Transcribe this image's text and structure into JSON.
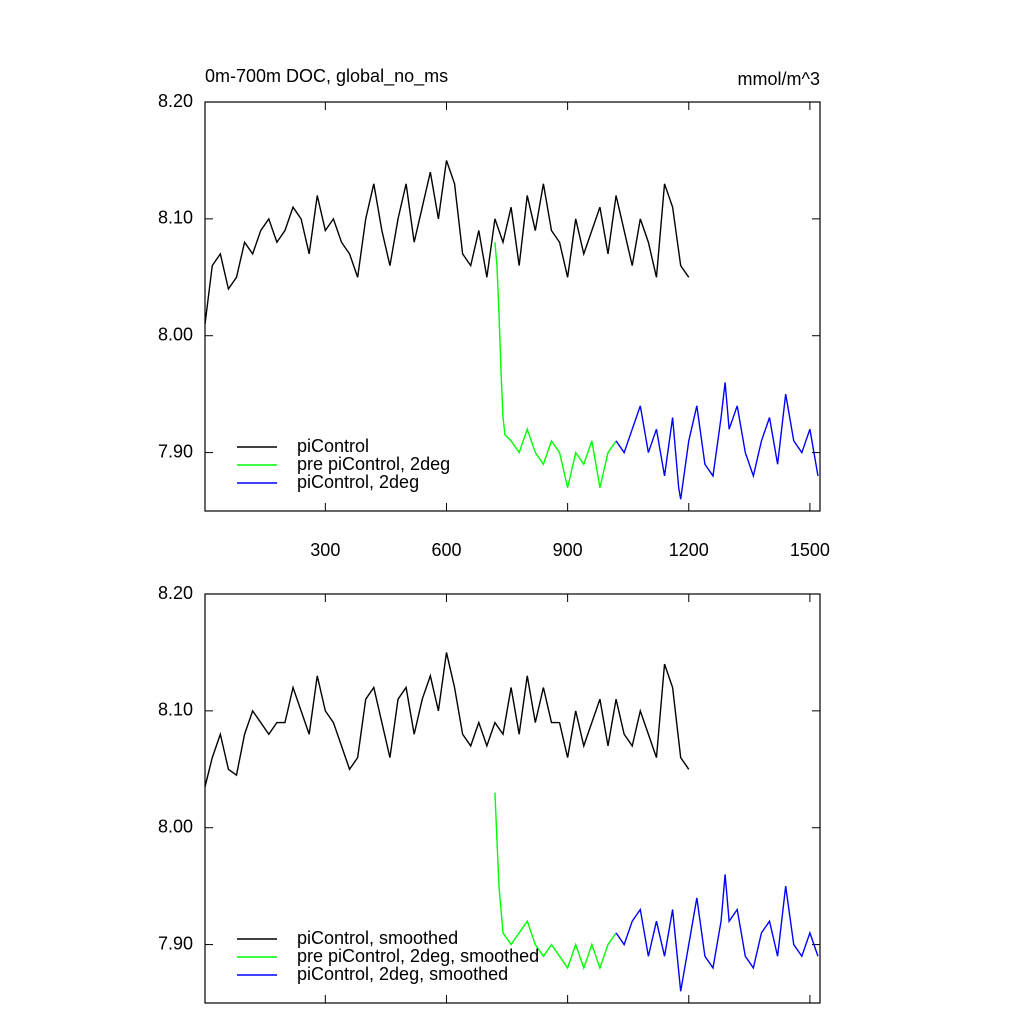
{
  "chart_data": [
    {
      "type": "line",
      "title": "0m-700m DOC, global_no_ms",
      "subtitle": "mmol/m^3",
      "xlim": [
        2,
        1525
      ],
      "ylim": [
        7.85,
        8.2
      ],
      "xticks": [
        300,
        600,
        900,
        1200,
        1500
      ],
      "show_xtick_labels": true,
      "yticks": [
        {
          "value": 7.9,
          "label": "7.90"
        },
        {
          "value": 8.0,
          "label": "8.00"
        },
        {
          "value": 8.1,
          "label": "8.10"
        },
        {
          "value": 8.2,
          "label": "8.20"
        }
      ],
      "legend": "lower left",
      "series": [
        {
          "name": "piControl",
          "color": "#000000",
          "x": [
            2,
            20,
            40,
            60,
            80,
            100,
            120,
            140,
            160,
            180,
            200,
            220,
            240,
            260,
            280,
            300,
            320,
            340,
            360,
            380,
            400,
            420,
            440,
            460,
            480,
            500,
            520,
            540,
            560,
            580,
            600,
            620,
            640,
            660,
            680,
            700,
            720,
            740,
            760,
            780,
            800,
            820,
            840,
            860,
            880,
            900,
            920,
            940,
            960,
            980,
            1000,
            1020,
            1040,
            1060,
            1080,
            1100,
            1120,
            1140,
            1160,
            1180,
            1200
          ],
          "values": [
            8.01,
            8.06,
            8.07,
            8.04,
            8.05,
            8.08,
            8.07,
            8.09,
            8.1,
            8.08,
            8.09,
            8.11,
            8.1,
            8.07,
            8.12,
            8.09,
            8.1,
            8.08,
            8.07,
            8.05,
            8.1,
            8.13,
            8.09,
            8.06,
            8.1,
            8.13,
            8.08,
            8.11,
            8.14,
            8.1,
            8.15,
            8.13,
            8.07,
            8.06,
            8.09,
            8.05,
            8.1,
            8.08,
            8.11,
            8.06,
            8.12,
            8.09,
            8.13,
            8.09,
            8.08,
            8.05,
            8.1,
            8.07,
            8.09,
            8.11,
            8.07,
            8.12,
            8.09,
            8.06,
            8.1,
            8.08,
            8.05,
            8.13,
            8.11,
            8.06,
            8.05
          ]
        },
        {
          "name": "pre piControl, 2deg",
          "color": "#00ff00",
          "x": [
            720,
            725,
            730,
            735,
            740,
            745,
            760,
            780,
            800,
            820,
            840,
            860,
            880,
            900,
            920,
            940,
            960,
            980,
            1000,
            1020
          ],
          "values": [
            8.08,
            8.06,
            8.02,
            7.97,
            7.93,
            7.915,
            7.91,
            7.9,
            7.92,
            7.9,
            7.89,
            7.91,
            7.9,
            7.87,
            7.9,
            7.89,
            7.91,
            7.87,
            7.9,
            7.91
          ]
        },
        {
          "name": "piControl, 2deg",
          "color": "#0000ff",
          "x": [
            1020,
            1040,
            1060,
            1080,
            1100,
            1120,
            1140,
            1160,
            1175,
            1180,
            1200,
            1220,
            1240,
            1260,
            1280,
            1290,
            1300,
            1320,
            1340,
            1360,
            1380,
            1400,
            1420,
            1440,
            1460,
            1480,
            1500,
            1520
          ],
          "values": [
            7.91,
            7.9,
            7.92,
            7.94,
            7.9,
            7.92,
            7.88,
            7.93,
            7.87,
            7.86,
            7.91,
            7.94,
            7.89,
            7.88,
            7.93,
            7.96,
            7.92,
            7.94,
            7.9,
            7.88,
            7.91,
            7.93,
            7.89,
            7.95,
            7.91,
            7.9,
            7.92,
            7.88
          ]
        }
      ]
    },
    {
      "type": "line",
      "xlim": [
        2,
        1525
      ],
      "ylim": [
        7.85,
        8.2
      ],
      "xticks": [
        300,
        600,
        900,
        1200,
        1500
      ],
      "show_xtick_labels": false,
      "yticks": [
        {
          "value": 7.9,
          "label": "7.90"
        },
        {
          "value": 8.0,
          "label": "8.00"
        },
        {
          "value": 8.1,
          "label": "8.10"
        },
        {
          "value": 8.2,
          "label": "8.20"
        }
      ],
      "legend": "lower left",
      "series": [
        {
          "name": "piControl, smoothed",
          "color": "#000000",
          "x": [
            2,
            20,
            40,
            60,
            80,
            100,
            120,
            140,
            160,
            180,
            200,
            220,
            240,
            260,
            280,
            300,
            320,
            340,
            360,
            380,
            400,
            420,
            440,
            460,
            480,
            500,
            520,
            540,
            560,
            580,
            600,
            620,
            640,
            660,
            680,
            700,
            720,
            740,
            760,
            780,
            800,
            820,
            840,
            860,
            880,
            900,
            920,
            940,
            960,
            980,
            1000,
            1020,
            1040,
            1060,
            1080,
            1100,
            1120,
            1140,
            1160,
            1180,
            1200
          ],
          "values": [
            8.035,
            8.06,
            8.08,
            8.05,
            8.045,
            8.08,
            8.1,
            8.09,
            8.08,
            8.09,
            8.09,
            8.12,
            8.1,
            8.08,
            8.13,
            8.1,
            8.09,
            8.07,
            8.05,
            8.06,
            8.11,
            8.12,
            8.09,
            8.06,
            8.11,
            8.12,
            8.08,
            8.11,
            8.13,
            8.1,
            8.15,
            8.12,
            8.08,
            8.07,
            8.09,
            8.07,
            8.09,
            8.08,
            8.12,
            8.08,
            8.13,
            8.09,
            8.12,
            8.09,
            8.09,
            8.06,
            8.1,
            8.07,
            8.09,
            8.11,
            8.07,
            8.11,
            8.08,
            8.07,
            8.1,
            8.08,
            8.06,
            8.14,
            8.12,
            8.06,
            8.05
          ]
        },
        {
          "name": "pre piControl, 2deg, smoothed",
          "color": "#00ff00",
          "x": [
            720,
            730,
            740,
            760,
            780,
            800,
            820,
            840,
            860,
            880,
            900,
            920,
            940,
            960,
            980,
            1000,
            1020
          ],
          "values": [
            8.03,
            7.95,
            7.91,
            7.9,
            7.91,
            7.92,
            7.9,
            7.89,
            7.9,
            7.89,
            7.88,
            7.9,
            7.88,
            7.9,
            7.88,
            7.9,
            7.91
          ]
        },
        {
          "name": "piControl, 2deg, smoothed",
          "color": "#0000ff",
          "x": [
            1020,
            1040,
            1060,
            1080,
            1100,
            1120,
            1140,
            1160,
            1180,
            1200,
            1220,
            1240,
            1260,
            1280,
            1290,
            1300,
            1320,
            1340,
            1360,
            1380,
            1400,
            1420,
            1440,
            1460,
            1480,
            1500,
            1520
          ],
          "values": [
            7.91,
            7.9,
            7.92,
            7.93,
            7.89,
            7.92,
            7.89,
            7.93,
            7.86,
            7.9,
            7.94,
            7.89,
            7.88,
            7.92,
            7.96,
            7.92,
            7.93,
            7.89,
            7.88,
            7.91,
            7.92,
            7.89,
            7.95,
            7.9,
            7.89,
            7.91,
            7.89
          ]
        }
      ]
    }
  ]
}
